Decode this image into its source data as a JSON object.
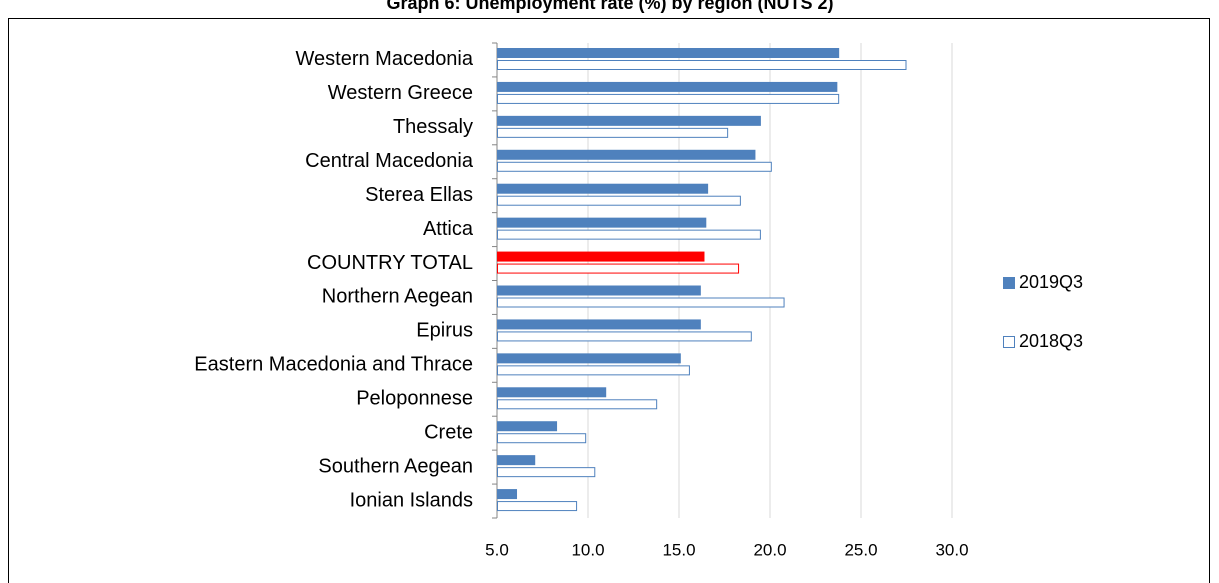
{
  "chart_data": {
    "type": "hbar",
    "title": "Graph 6: Unemployment rate (%) by region (NUTS 2)",
    "categories": [
      "Western Macedonia",
      "Western Greece",
      "Thessaly",
      "Central Macedonia",
      "Sterea Ellas",
      "Attica",
      "COUNTRY TOTAL",
      "Northern Aegean",
      "Epirus",
      "Eastern Macedonia and Thrace",
      "Peloponnese",
      "Crete",
      "Southern Aegean",
      "Ionian Islands"
    ],
    "series": [
      {
        "name": "2019Q3",
        "filled": true,
        "color": "#4f81bd",
        "colors": [
          "#4f81bd",
          "#4f81bd",
          "#4f81bd",
          "#4f81bd",
          "#4f81bd",
          "#4f81bd",
          "#ff0000",
          "#4f81bd",
          "#4f81bd",
          "#4f81bd",
          "#4f81bd",
          "#4f81bd",
          "#4f81bd",
          "#4f81bd"
        ],
        "values": [
          23.8,
          23.7,
          19.5,
          19.2,
          16.6,
          16.5,
          16.4,
          16.2,
          16.2,
          15.1,
          11.0,
          8.3,
          7.1,
          6.1
        ]
      },
      {
        "name": "2018Q3",
        "filled": false,
        "color": "#4f81bd",
        "colors": [
          "#4f81bd",
          "#4f81bd",
          "#4f81bd",
          "#4f81bd",
          "#4f81bd",
          "#4f81bd",
          "#ff0000",
          "#4f81bd",
          "#4f81bd",
          "#4f81bd",
          "#4f81bd",
          "#4f81bd",
          "#4f81bd",
          "#4f81bd"
        ],
        "values": [
          27.5,
          23.8,
          17.7,
          20.1,
          18.4,
          19.5,
          18.3,
          20.8,
          19.0,
          15.6,
          13.8,
          9.9,
          10.4,
          9.4
        ]
      }
    ],
    "xlim": [
      5,
      30
    ],
    "xticks": [
      {
        "value": 5,
        "label": "5.0"
      },
      {
        "value": 10,
        "label": "10.0"
      },
      {
        "value": 15,
        "label": "15.0"
      },
      {
        "value": 20,
        "label": "20.0"
      },
      {
        "value": 25,
        "label": "25.0"
      },
      {
        "value": 30,
        "label": "30.0"
      }
    ],
    "grid": true,
    "legend": "right"
  }
}
